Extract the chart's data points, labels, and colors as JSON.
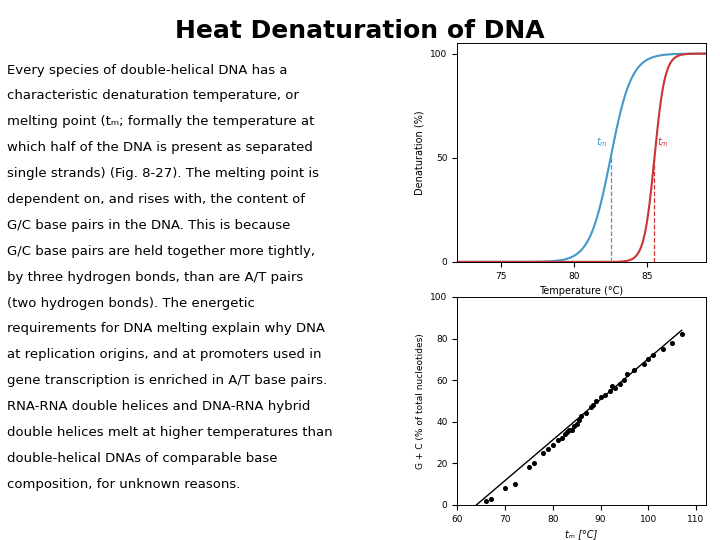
{
  "title": "Heat Denaturation of DNA",
  "title_fontsize": 18,
  "title_font": "Courier New",
  "background_color": "#ffffff",
  "text_color": "#000000",
  "body_lines": [
    "Every species of double-helical DNA has a",
    "characteristic denaturation temperature, or",
    "melting point (tₘ; formally the temperature at",
    "which half of the DNA is present as separated",
    "single strands) (Fig. 8-27). The melting point is",
    "dependent on, and rises with, the content of",
    "G/C base pairs in the DNA. This is because",
    "G/C base pairs are held together more tightly,",
    "by three hydrogen bonds, than are A/T pairs",
    "(two hydrogen bonds). The energetic",
    "requirements for DNA melting explain why DNA",
    "at replication origins, and at promoters used in",
    "gene transcription is enriched in A/T base pairs.",
    "RNA-RNA double helices and DNA-RNA hybrid",
    "double helices melt at higher temperatures than",
    "double-helical DNAs of comparable base",
    "composition, for unknown reasons."
  ],
  "body_fontsize": 9.5,
  "plot1": {
    "xlim": [
      72,
      89
    ],
    "ylim": [
      0,
      105
    ],
    "xticks": [
      75,
      80,
      85
    ],
    "yticks": [
      0,
      50,
      100
    ],
    "xlabel": "Temperature (°C)",
    "ylabel": "Denaturation (%)",
    "blue_tm": 82.5,
    "red_tm": 85.5,
    "blue_color": "#4499cc",
    "red_color": "#cc3333"
  },
  "plot2": {
    "xlim": [
      60,
      112
    ],
    "ylim": [
      0,
      100
    ],
    "xticks": [
      60,
      70,
      80,
      90,
      100,
      110
    ],
    "yticks": [
      0,
      20,
      40,
      60,
      80,
      100
    ],
    "xlabel": "tₘ [°C]",
    "ylabel": "G + C (% of total nucleotides)",
    "scatter_x": [
      66,
      67,
      70,
      72,
      75,
      76,
      78,
      79,
      80,
      81,
      82,
      82.5,
      83,
      83.5,
      84,
      84.5,
      85,
      85.5,
      86,
      87,
      88,
      88.5,
      89,
      90,
      91,
      92,
      92.5,
      93,
      94,
      95,
      95.5,
      97,
      99,
      100,
      101,
      103,
      105,
      107
    ],
    "scatter_y": [
      2,
      3,
      8,
      10,
      18,
      20,
      25,
      27,
      29,
      31,
      32,
      34,
      35,
      36,
      36,
      38,
      39,
      41,
      43,
      44,
      47,
      48,
      50,
      52,
      53,
      55,
      57,
      56,
      58,
      60,
      63,
      65,
      68,
      70,
      72,
      75,
      78,
      82
    ],
    "line_x": [
      63,
      107
    ],
    "line_y": [
      -2,
      84
    ]
  }
}
